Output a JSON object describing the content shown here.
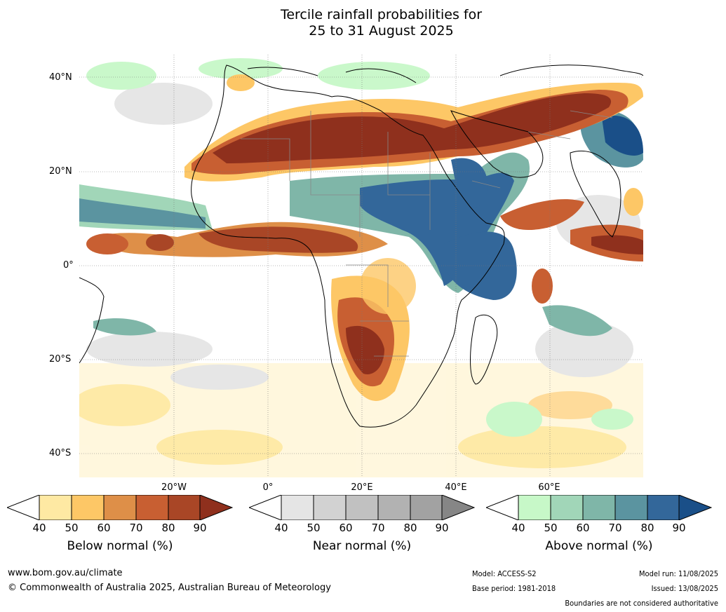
{
  "title": {
    "line1": "Tercile rainfall probabilities for",
    "line2": "25 to 31 August 2025"
  },
  "map": {
    "lat_labels": [
      "40°N",
      "20°N",
      "0°",
      "20°S",
      "40°S"
    ],
    "lon_labels": [
      "20°W",
      "0°",
      "20°E",
      "40°E",
      "60°E"
    ]
  },
  "colorbars": [
    {
      "name": "below",
      "label": "Below normal (%)",
      "ticks": [
        "40",
        "50",
        "60",
        "70",
        "80",
        "90"
      ],
      "colors": [
        "#fee9a3",
        "#fdc766",
        "#de8f48",
        "#c85f32",
        "#a94626",
        "#8f301d"
      ]
    },
    {
      "name": "near",
      "label": "Near normal (%)",
      "ticks": [
        "40",
        "50",
        "60",
        "70",
        "80",
        "90"
      ],
      "colors": [
        "#e5e5e5",
        "#d2d2d2",
        "#c1c1c1",
        "#b2b2b2",
        "#a2a2a2",
        "#868686"
      ]
    },
    {
      "name": "above",
      "label": "Above normal (%)",
      "ticks": [
        "40",
        "50",
        "60",
        "70",
        "80",
        "90"
      ],
      "colors": [
        "#c7f8c8",
        "#a1d6b8",
        "#7fb6a8",
        "#5b94a0",
        "#33679a",
        "#1a4f88"
      ]
    }
  ],
  "footer": {
    "url": "www.bom.gov.au/climate",
    "copyright": "© Commonwealth of Australia 2025, Australian Bureau of Meteorology",
    "model": "Model: ACCESS-S2",
    "base_period": "Base period: 1981-2018",
    "model_run": "Model run: 11/08/2025",
    "issued": "Issued: 13/08/2025",
    "disclaimer": "Boundaries are not considered authoritative"
  }
}
